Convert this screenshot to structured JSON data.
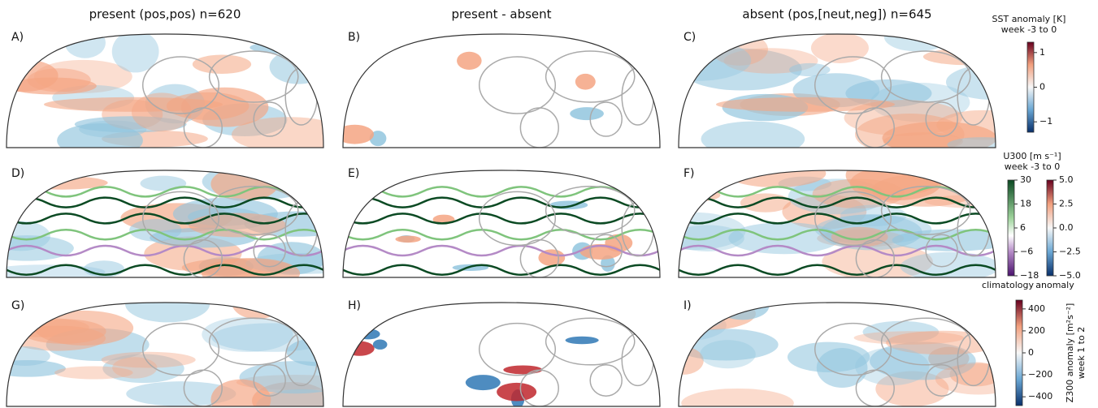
{
  "columns": [
    "present (pos,pos) n=620",
    "present - absent",
    "absent (pos,[neut,neg]) n=645"
  ],
  "panels": [
    "A)",
    "B)",
    "C)",
    "D)",
    "E)",
    "F)",
    "G)",
    "H)",
    "I)"
  ],
  "colorbars": [
    {
      "title": "SST anomaly [K]",
      "subtitle": "week -3 to 0",
      "lim": [
        -1.3,
        1.3
      ],
      "ticks": [
        {
          "value": 1,
          "label": "1"
        },
        0,
        {
          "value": -1,
          "label": "−1"
        }
      ]
    },
    {
      "title": "U300 [m s⁻¹]",
      "subtitle": "week -3 to 0",
      "caption": "climatology",
      "lim": [
        -18,
        30
      ],
      "ticks": [
        30,
        18,
        6,
        {
          "value": -6,
          "label": "−6"
        },
        {
          "value": -18,
          "label": "−18"
        }
      ]
    },
    {
      "caption": "anomaly",
      "lim": [
        -5,
        5
      ],
      "ticks": [
        {
          "value": 5,
          "label": "5.0"
        },
        {
          "value": 2.5,
          "label": "2.5"
        },
        {
          "value": 0,
          "label": "0.0"
        },
        {
          "value": -2.5,
          "label": "−2.5"
        },
        {
          "value": -5,
          "label": "−5.0"
        }
      ]
    },
    {
      "title": "Z300 anomaly [m²s⁻²]",
      "subtitle": "week 1 to 2",
      "lim": [
        -480,
        480
      ],
      "ticks": [
        400,
        200,
        0,
        {
          "value": -200,
          "label": "−200"
        },
        {
          "value": -400,
          "label": "−400"
        }
      ]
    }
  ]
}
